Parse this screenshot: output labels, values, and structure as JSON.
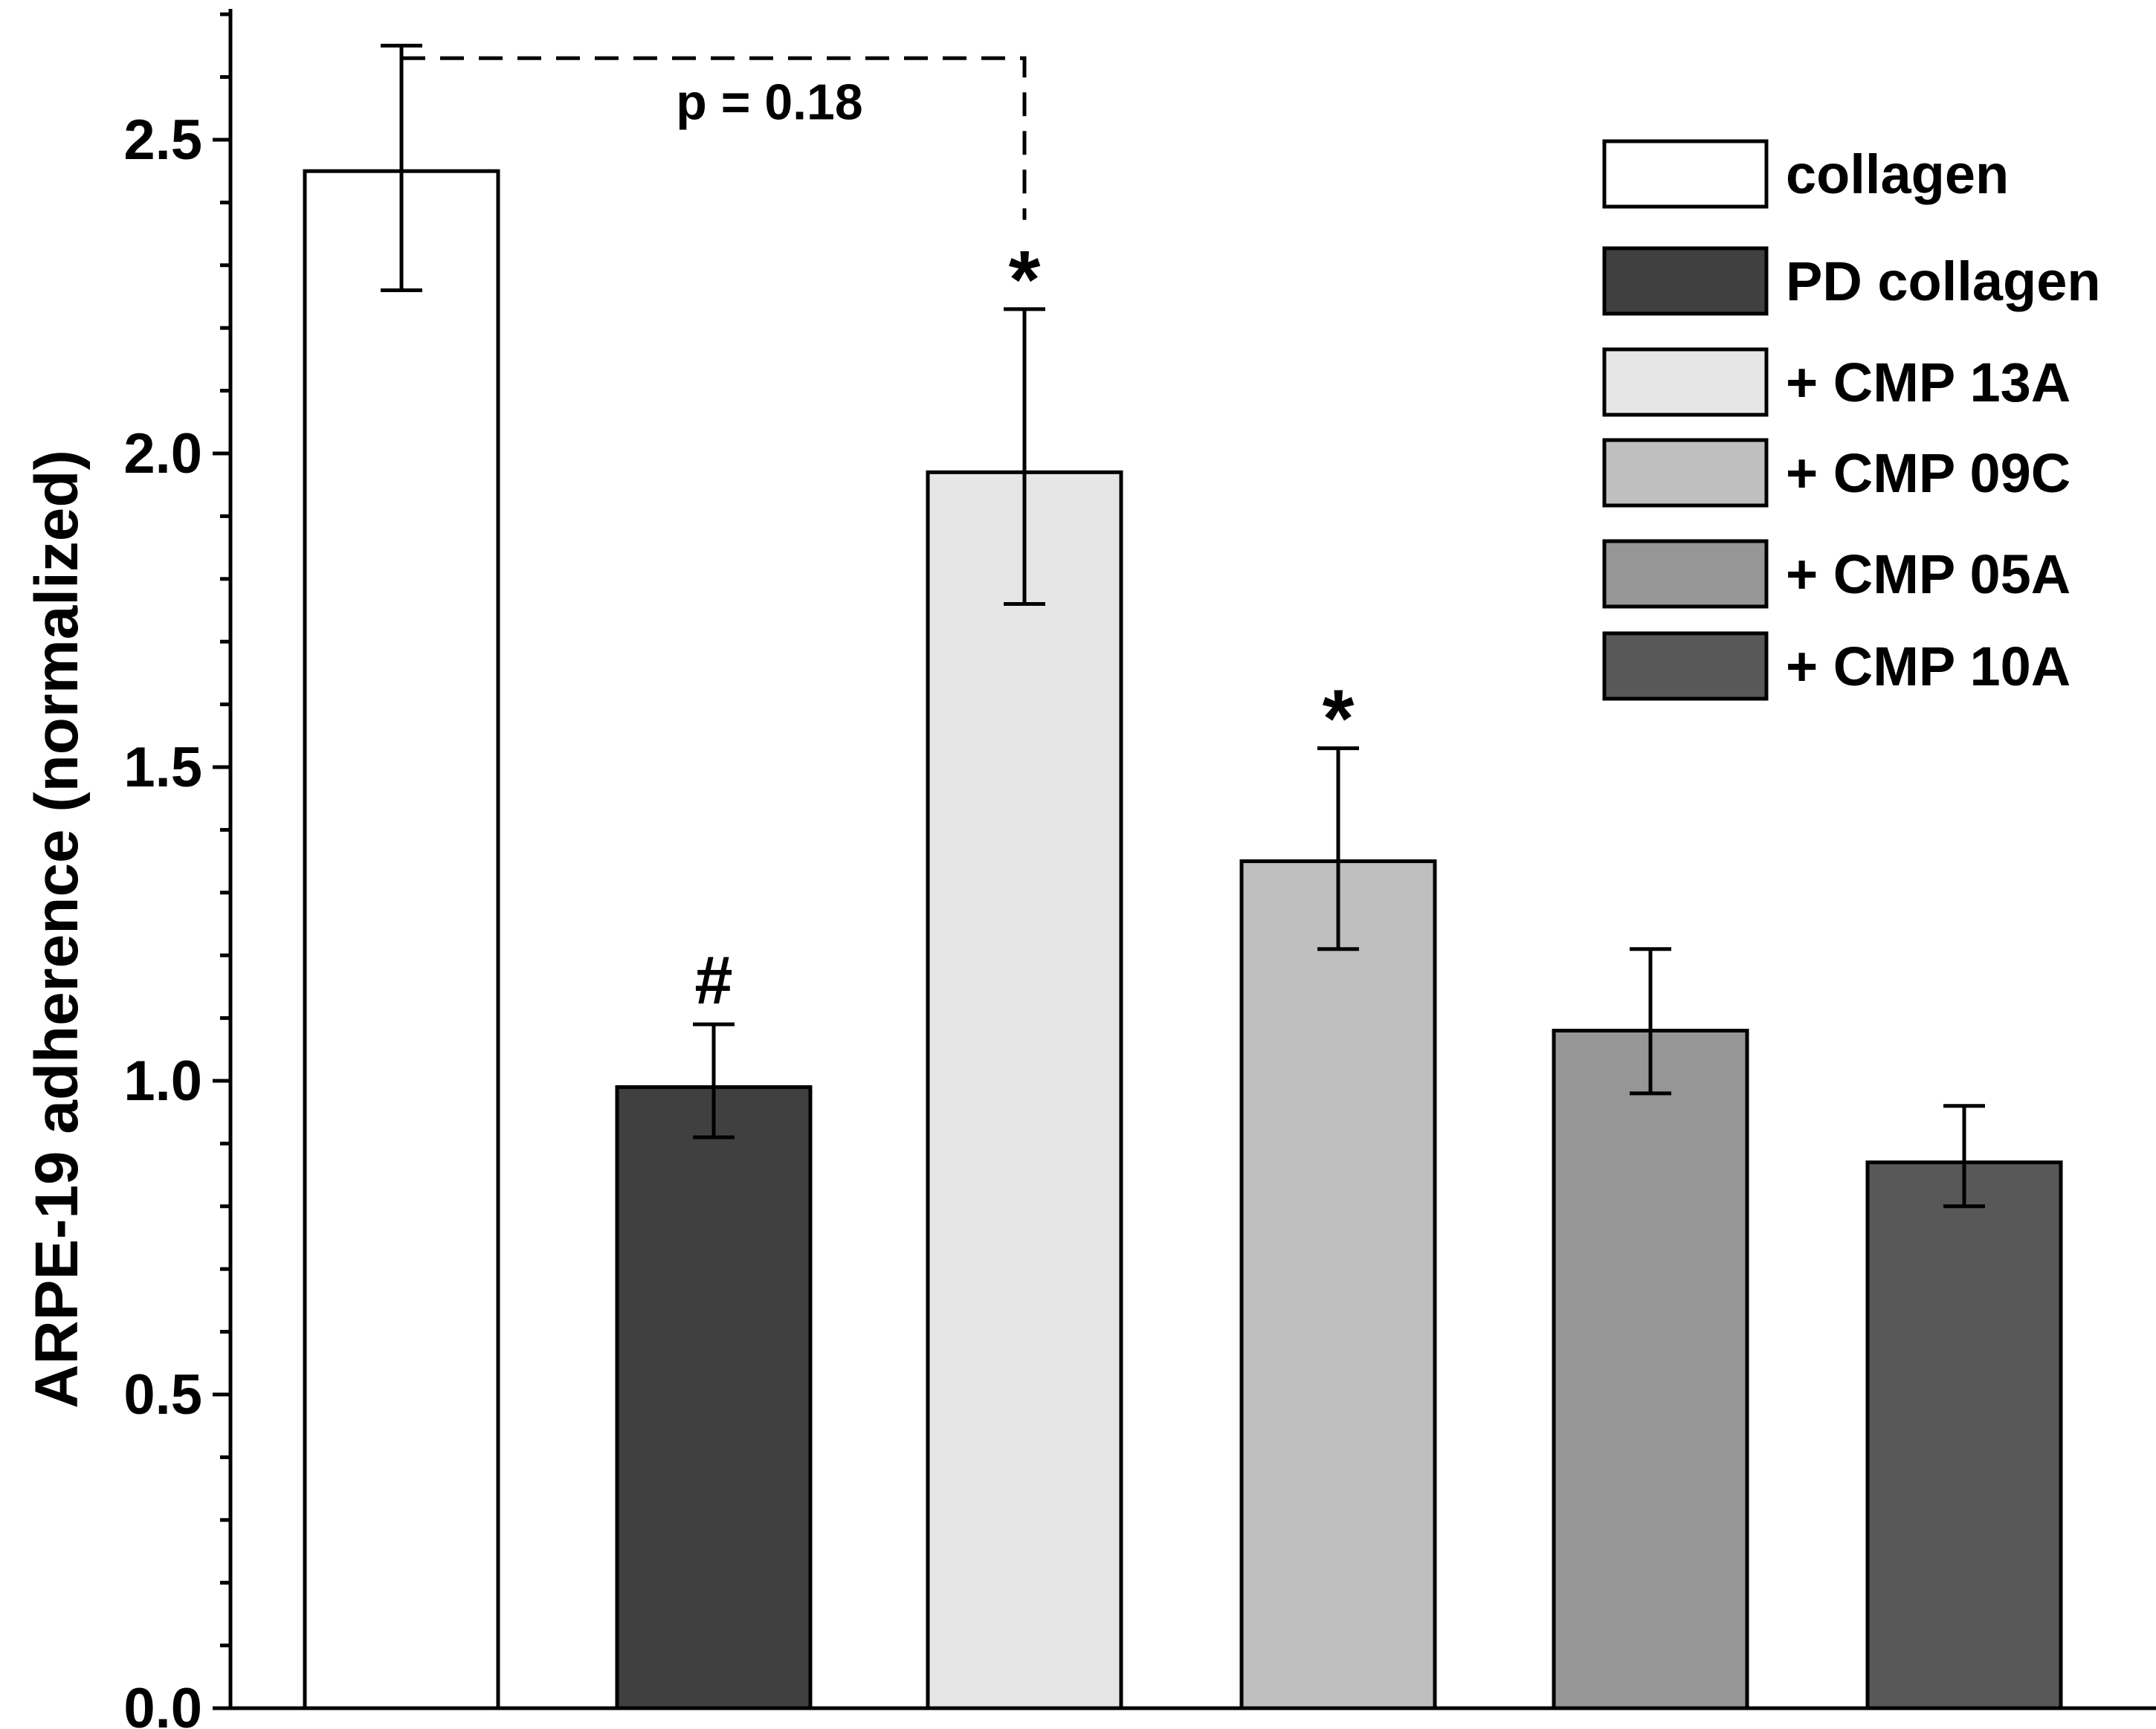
{
  "chart_data": {
    "type": "bar",
    "title": "",
    "xlabel": "",
    "ylabel": "ARPE-19 adherence (normalized)",
    "ylim": [
      0,
      2.7
    ],
    "y_ticks": [
      {
        "value": 0.0,
        "label": "0.0"
      },
      {
        "value": 0.5,
        "label": "0.5"
      },
      {
        "value": 1.0,
        "label": "1.0"
      },
      {
        "value": 1.5,
        "label": "1.5"
      },
      {
        "value": 2.0,
        "label": "2.0"
      },
      {
        "value": 2.5,
        "label": "2.5"
      }
    ],
    "y_minor_step": 0.1,
    "grid": false,
    "legend_position": "top-right",
    "categories": [
      "collagen",
      "PD collagen",
      "+ CMP 13A",
      "+ CMP 09C",
      "+ CMP 05A",
      "+ CMP 10A"
    ],
    "values": [
      2.45,
      0.99,
      1.97,
      1.35,
      1.08,
      0.87
    ],
    "error_low": [
      2.26,
      0.91,
      1.76,
      1.21,
      0.98,
      0.8
    ],
    "error_high": [
      2.65,
      1.09,
      2.23,
      1.53,
      1.21,
      0.96
    ],
    "bar_colors": [
      "#ffffff",
      "#404040",
      "#e6e6e6",
      "#bfbfbf",
      "#969696",
      "#585858"
    ],
    "markers": [
      "",
      "#",
      "*",
      "*",
      "",
      ""
    ],
    "comparison": {
      "from_category": "collagen",
      "to_category": "+ CMP 13A",
      "label": "p = 0.18",
      "line_value": 2.63
    }
  }
}
